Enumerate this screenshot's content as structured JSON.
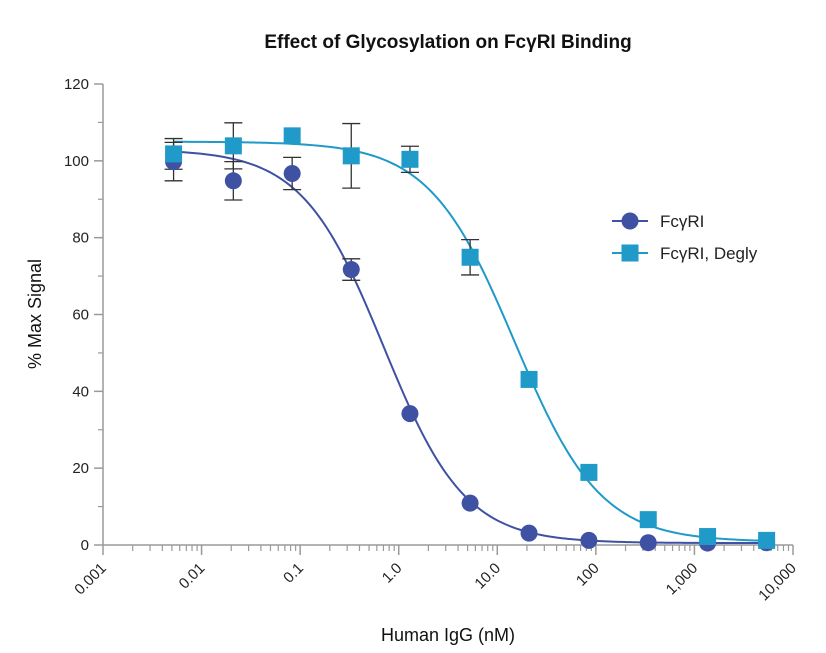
{
  "chart_data": {
    "type": "scatter",
    "title": "Effect of Glycosylation on FcγRI Binding",
    "xlabel": "Human IgG (nM)",
    "ylabel": "% Max Signal",
    "xscale": "log",
    "xlim": [
      0.001,
      10000
    ],
    "ylim": [
      0,
      120
    ],
    "x_tick_labels": [
      "0.001",
      "0.01",
      "0.1",
      "1.0",
      "10.0",
      "100",
      "1,000",
      "10,000"
    ],
    "y_tick_labels": [
      "0",
      "20",
      "40",
      "60",
      "80",
      "100",
      "120"
    ],
    "legend_position": "right",
    "series": [
      {
        "name": "FcγRI",
        "marker": "circle",
        "color": "#3f51a3",
        "points": [
          {
            "x": 0.0052,
            "y": 99.8,
            "err": 5
          },
          {
            "x": 0.021,
            "y": 94.8,
            "err": 5
          },
          {
            "x": 0.083,
            "y": 96.7,
            "err": 4.2
          },
          {
            "x": 0.33,
            "y": 71.7,
            "err": 2.8
          },
          {
            "x": 1.3,
            "y": 34.2,
            "err": 0
          },
          {
            "x": 5.3,
            "y": 10.9,
            "err": 0
          },
          {
            "x": 21,
            "y": 3.1,
            "err": 0
          },
          {
            "x": 85,
            "y": 1.2,
            "err": 0
          },
          {
            "x": 340,
            "y": 0.6,
            "err": 0
          },
          {
            "x": 1360,
            "y": 0.5,
            "err": 0
          },
          {
            "x": 5400,
            "y": 0.6,
            "err": 0
          }
        ],
        "fit": {
          "top": 103,
          "bottom": 0.5,
          "ec50": 0.7,
          "hill": 1.05
        }
      },
      {
        "name": "FcγRI, Degly",
        "marker": "square",
        "color": "#1f9ac9",
        "points": [
          {
            "x": 0.0052,
            "y": 101.8,
            "err": 4
          },
          {
            "x": 0.021,
            "y": 103.9,
            "err": 6
          },
          {
            "x": 0.083,
            "y": 106.5,
            "err": 0
          },
          {
            "x": 0.33,
            "y": 101.3,
            "err": 8.4
          },
          {
            "x": 1.3,
            "y": 100.4,
            "err": 3.4
          },
          {
            "x": 5.3,
            "y": 74.9,
            "err": 4.6
          },
          {
            "x": 21,
            "y": 43.1,
            "err": 0
          },
          {
            "x": 85,
            "y": 18.9,
            "err": 0
          },
          {
            "x": 340,
            "y": 6.6,
            "err": 0
          },
          {
            "x": 1360,
            "y": 2.2,
            "err": 0
          },
          {
            "x": 5400,
            "y": 1.2,
            "err": 0
          }
        ],
        "fit": {
          "top": 105,
          "bottom": 0.8,
          "ec50": 15,
          "hill": 1.0
        }
      }
    ]
  }
}
